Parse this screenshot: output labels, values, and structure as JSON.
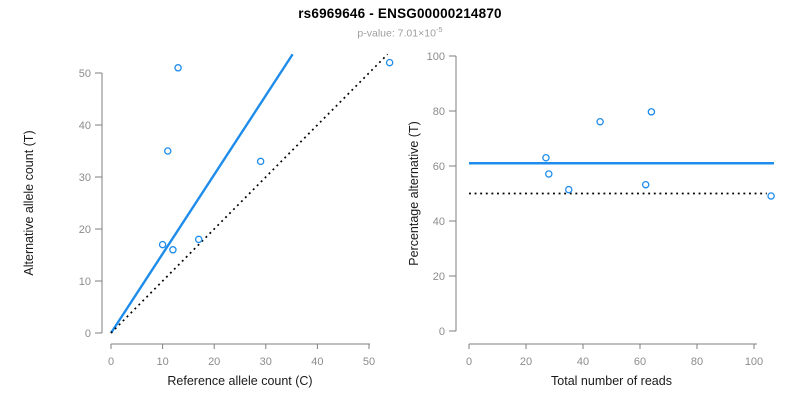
{
  "header": {
    "title": "rs6969646 - ENSG00000214870",
    "p_value_label": "p-value: ",
    "p_value_base": "7.01×10",
    "p_value_exponent": "-5"
  },
  "colors": {
    "accent_blue": "#1e8ceb",
    "dotted_black": "#000000",
    "axis_gray": "#7f7f7f",
    "tick_label_gray": "#8c8c8c",
    "subtitle_gray": "#9e9e9e"
  },
  "chart_data": [
    {
      "type": "scatter",
      "panel": "left",
      "xlabel": "Reference allele count (C)",
      "ylabel": "Alternative allele count (T)",
      "xlim": [
        0,
        55
      ],
      "ylim": [
        0,
        54
      ],
      "xticks": [
        0,
        10,
        20,
        30,
        40,
        50
      ],
      "yticks": [
        0,
        10,
        20,
        30,
        40,
        50
      ],
      "grid": false,
      "legend": "none",
      "marker": "open-circle",
      "point_color": "#1e8ceb",
      "points": [
        {
          "x": 10,
          "y": 17
        },
        {
          "x": 12,
          "y": 16
        },
        {
          "x": 13,
          "y": 51
        },
        {
          "x": 11,
          "y": 35
        },
        {
          "x": 17,
          "y": 18
        },
        {
          "x": 29,
          "y": 33
        },
        {
          "x": 54,
          "y": 52
        }
      ],
      "lines": [
        {
          "name": "fitted-ratio-line",
          "style": "solid",
          "color": "#1e8ceb",
          "x1": 0,
          "y1": 0,
          "x2": 35.2,
          "y2": 53.6
        },
        {
          "name": "identity-line",
          "style": "dotted",
          "color": "#000000",
          "x1": 0,
          "y1": 0,
          "x2": 53.6,
          "y2": 53.6
        }
      ]
    },
    {
      "type": "scatter",
      "panel": "right",
      "xlabel": "Total number of reads",
      "ylabel": "Percentage alternative (T)",
      "xlim": [
        0,
        107
      ],
      "ylim": [
        0,
        100
      ],
      "xticks": [
        0,
        20,
        40,
        60,
        80,
        100
      ],
      "yticks": [
        0,
        20,
        40,
        60,
        80,
        100
      ],
      "grid": false,
      "legend": "none",
      "marker": "open-circle",
      "point_color": "#1e8ceb",
      "points": [
        {
          "x": 27,
          "y": 63
        },
        {
          "x": 28,
          "y": 57.1
        },
        {
          "x": 35,
          "y": 51.4
        },
        {
          "x": 46,
          "y": 76.1
        },
        {
          "x": 62,
          "y": 53.2
        },
        {
          "x": 64,
          "y": 79.7
        },
        {
          "x": 106,
          "y": 49.1
        }
      ],
      "lines": [
        {
          "name": "mean-percentage-line",
          "style": "solid",
          "color": "#1e8ceb",
          "x1": 0,
          "y1": 61,
          "x2": 107,
          "y2": 61
        },
        {
          "name": "fifty-percent-line",
          "style": "dotted",
          "color": "#000000",
          "x1": 0,
          "y1": 50,
          "x2": 104.5,
          "y2": 50
        }
      ]
    }
  ]
}
